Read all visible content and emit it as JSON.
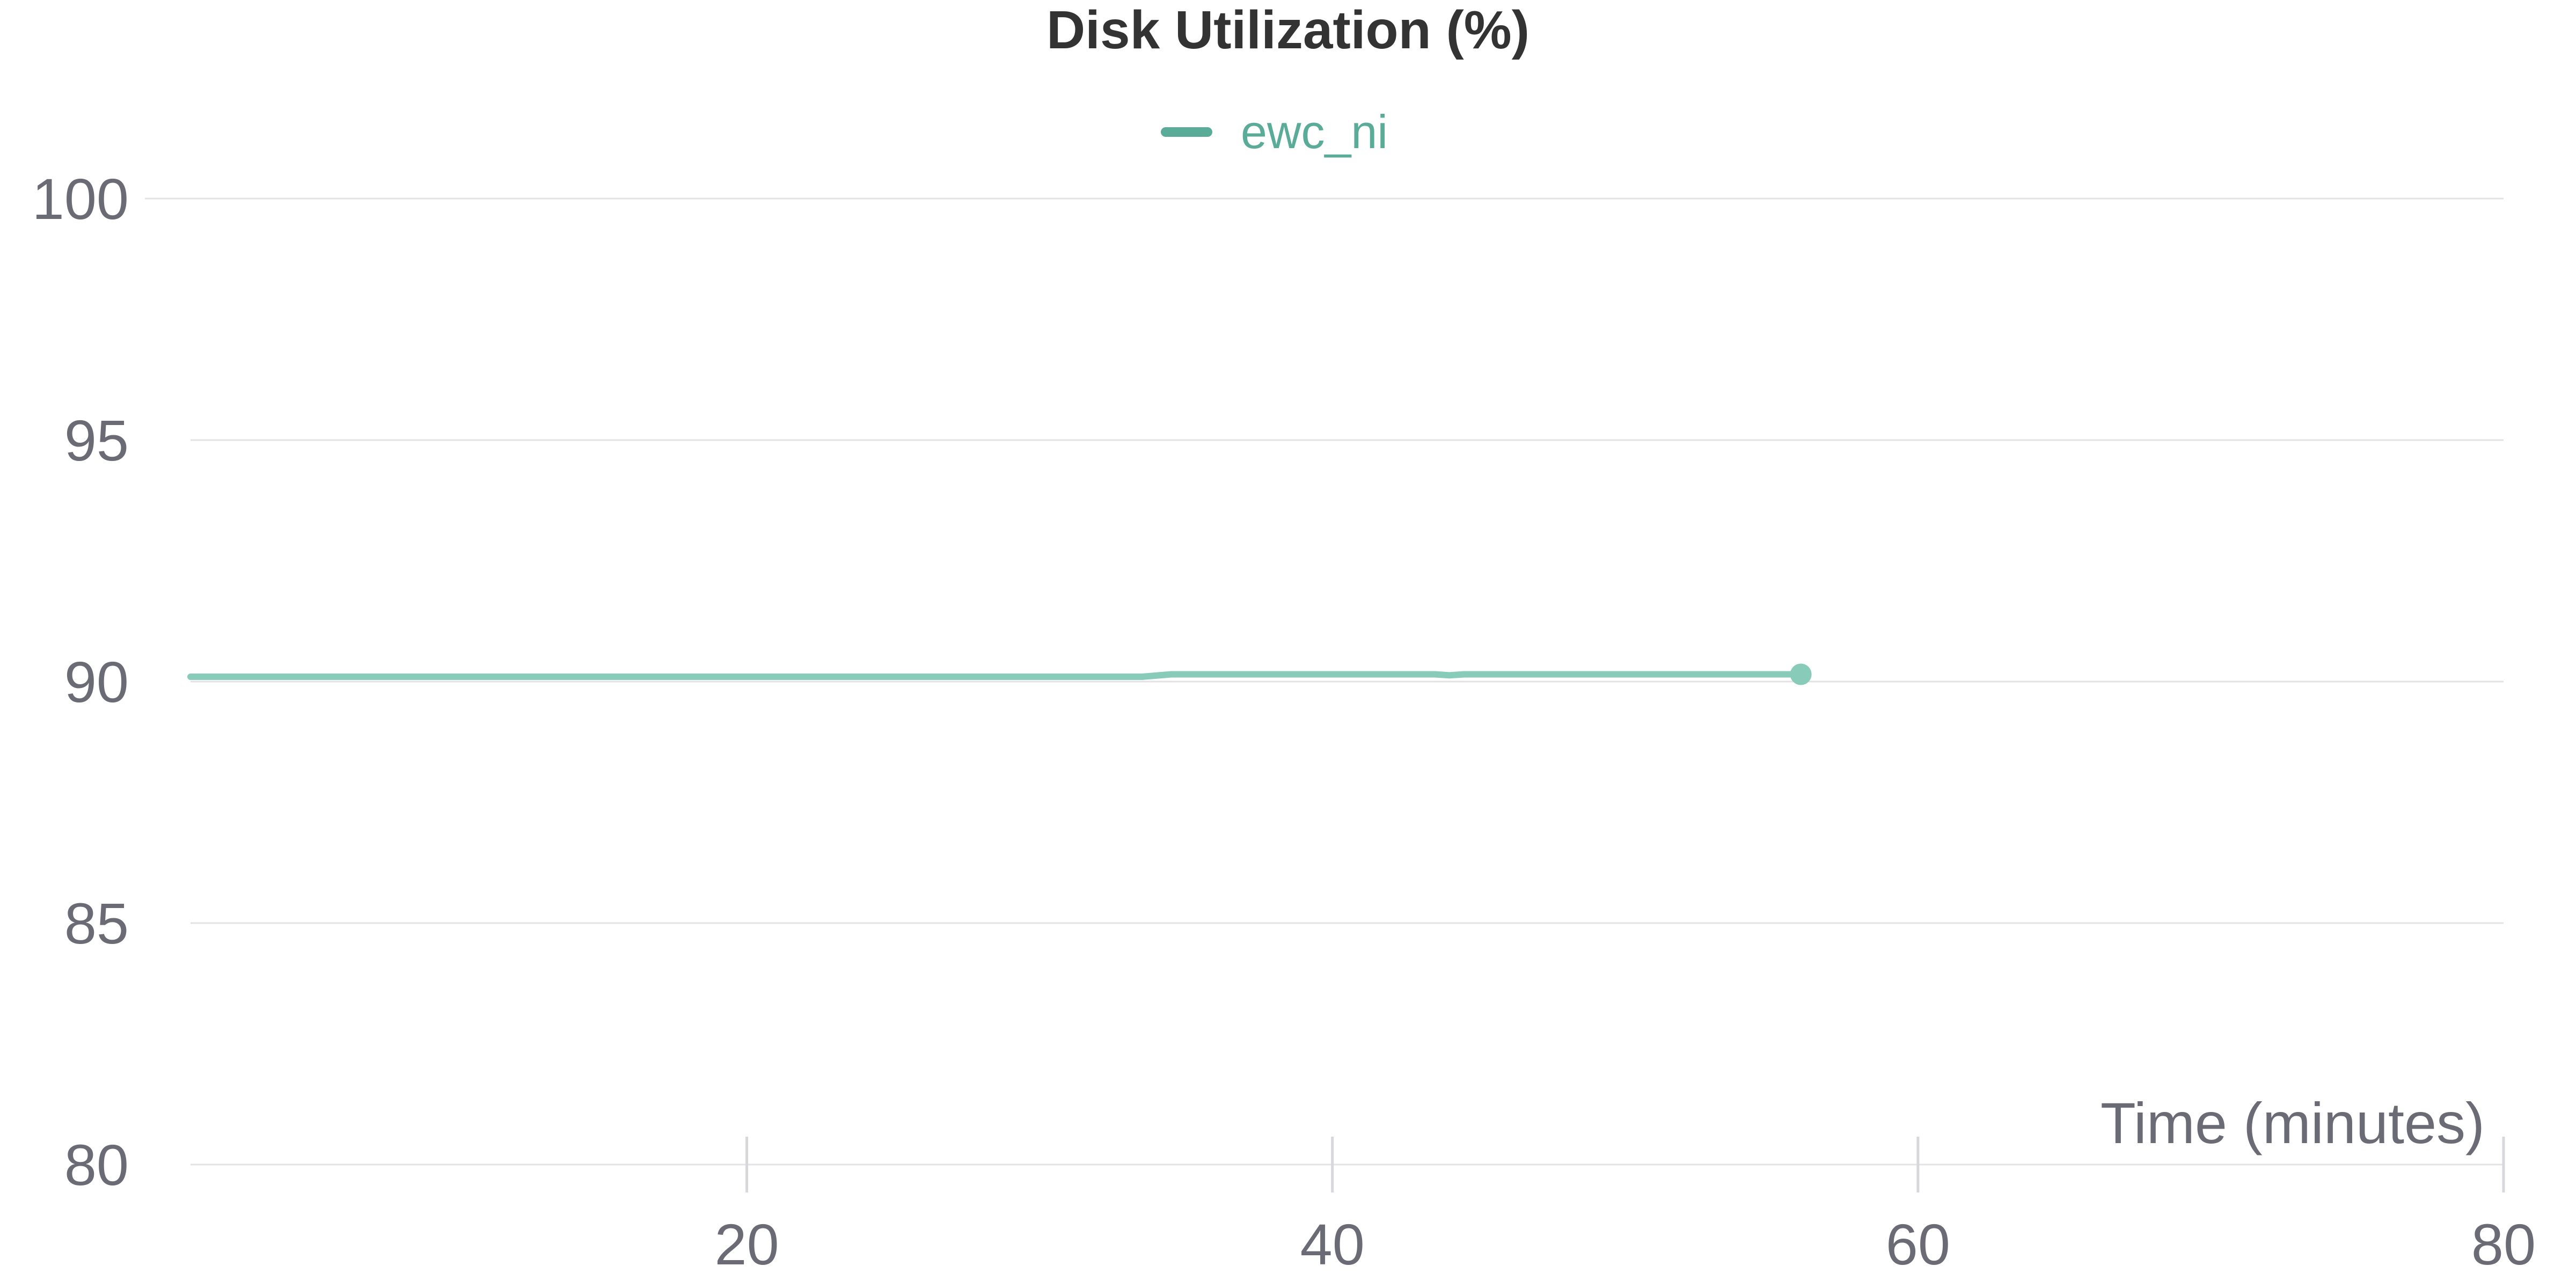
{
  "chart_data": {
    "type": "line",
    "title": "Disk Utilization (%)",
    "xlabel": "Time (minutes)",
    "ylabel": "",
    "xlim": [
      1,
      80
    ],
    "ylim": [
      80,
      100
    ],
    "x_ticks": [
      20,
      40,
      60,
      80
    ],
    "y_ticks": [
      80,
      85,
      90,
      95,
      100
    ],
    "grid": true,
    "legend": "top-center",
    "series": [
      {
        "name": "ewc_ni",
        "color": "#88cbb9",
        "legend_color": "#5aab98",
        "x": [
          1,
          10,
          20,
          30,
          33.5,
          34.5,
          40,
          43.5,
          44,
          44.5,
          50,
          56
        ],
        "y": [
          90.1,
          90.1,
          90.1,
          90.1,
          90.1,
          90.15,
          90.15,
          90.15,
          90.13,
          90.15,
          90.15,
          90.15
        ]
      }
    ]
  }
}
